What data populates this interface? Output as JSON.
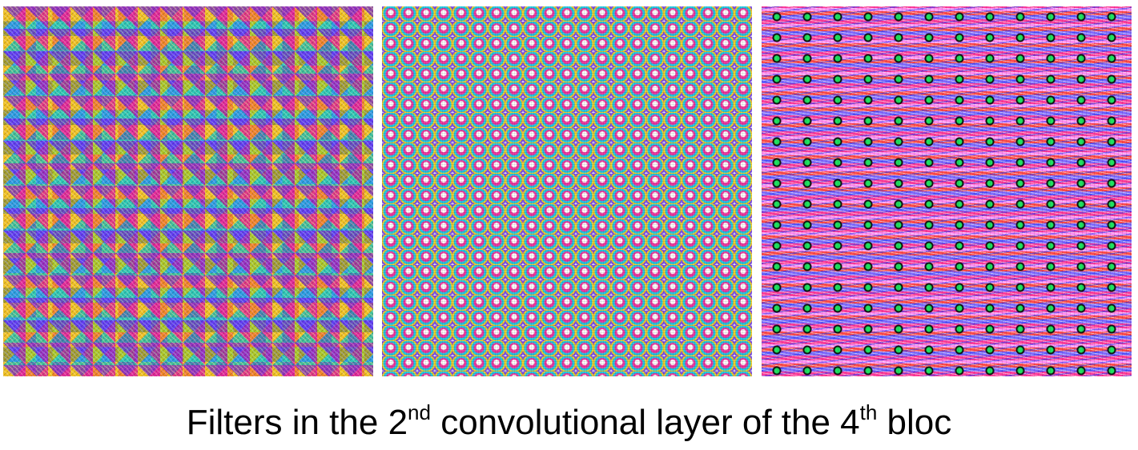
{
  "caption": {
    "part1": "Filters in the 2",
    "sup1": "nd",
    "part2": " convolutional layer of the 4",
    "sup2": "th",
    "part3": " bloc"
  }
}
